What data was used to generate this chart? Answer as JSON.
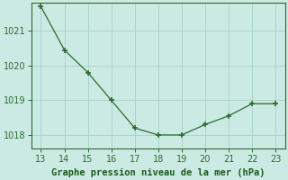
{
  "x": [
    13,
    14,
    15,
    16,
    17,
    18,
    19,
    20,
    21,
    22,
    23
  ],
  "y": [
    1021.7,
    1020.45,
    1019.8,
    1019.0,
    1018.2,
    1018.0,
    1018.0,
    1018.3,
    1018.55,
    1018.9,
    1018.9
  ],
  "line_color": "#2d6a2d",
  "marker_color": "#2d6a2d",
  "bg_color": "#cceae4",
  "grid_color": "#aad4cc",
  "xlabel": "Graphe pression niveau de la mer (hPa)",
  "xlabel_color": "#1a5c1a",
  "xlabel_fontsize": 7.5,
  "tick_color": "#2d6a2d",
  "tick_fontsize": 7,
  "xlim": [
    12.6,
    23.4
  ],
  "ylim": [
    1017.6,
    1021.8
  ],
  "yticks": [
    1018,
    1019,
    1020,
    1021
  ],
  "xticks": [
    13,
    14,
    15,
    16,
    17,
    18,
    19,
    20,
    21,
    22,
    23
  ]
}
